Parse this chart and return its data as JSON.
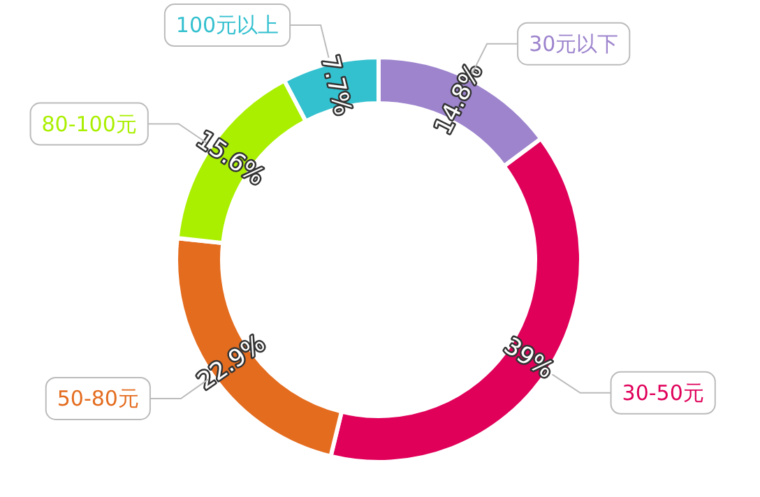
{
  "chart_data": {
    "type": "donut",
    "categories": [
      "30元以下",
      "30-50元",
      "50-80元",
      "80-100元",
      "100元以上"
    ],
    "values": [
      14.8,
      39,
      22.9,
      15.6,
      7.7
    ],
    "value_labels": [
      "14.8%",
      "39%",
      "22.9%",
      "15.6%",
      "7.7%"
    ],
    "colors": [
      "#9d84cd",
      "#e0005a",
      "#e46c1f",
      "#aaef00",
      "#33c0cf"
    ]
  }
}
